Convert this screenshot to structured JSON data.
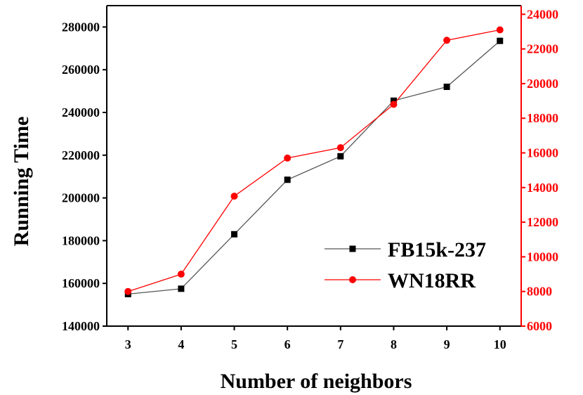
{
  "chart_data": {
    "type": "line",
    "xlabel": "Number of neighbors",
    "ylabel": "Running Time",
    "x": [
      3,
      4,
      5,
      6,
      7,
      8,
      9,
      10
    ],
    "xlim": [
      2.6,
      10.4
    ],
    "ylim_left": [
      140000,
      290000
    ],
    "yticks_left": [
      140000,
      160000,
      180000,
      200000,
      220000,
      240000,
      260000,
      280000
    ],
    "ylim_right": [
      6000,
      24500
    ],
    "yticks_right": [
      6000,
      8000,
      10000,
      12000,
      14000,
      16000,
      18000,
      20000,
      22000,
      24000
    ],
    "grid": false,
    "legend_position": "center-right",
    "series": [
      {
        "name": "FB15k-237",
        "axis": "left",
        "color": "#000000",
        "line_color": "#555555",
        "marker": "square",
        "values": [
          155000,
          157500,
          183000,
          208500,
          219500,
          245500,
          252000,
          273500
        ]
      },
      {
        "name": "WN18RR",
        "axis": "right",
        "color": "#ff0000",
        "line_color": "#ff0000",
        "marker": "circle",
        "values": [
          8000,
          9000,
          13500,
          15700,
          16300,
          18800,
          22500,
          23100
        ]
      }
    ]
  }
}
